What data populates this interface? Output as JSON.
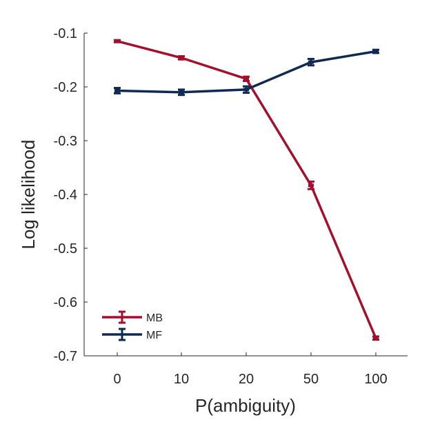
{
  "chart_data": {
    "type": "line",
    "title": "",
    "xlabel": "P(ambiguity)",
    "ylabel": "Log likelihood",
    "categories": [
      "0",
      "10",
      "20",
      "50",
      "100"
    ],
    "ylim": [
      -0.7,
      -0.1
    ],
    "yticks": [
      "-0.1",
      "-0.2",
      "-0.3",
      "-0.4",
      "-0.5",
      "-0.6",
      "-0.7"
    ],
    "ytick_values": [
      -0.1,
      -0.2,
      -0.3,
      -0.4,
      -0.5,
      -0.6,
      -0.7
    ],
    "grid": false,
    "legend_position": "bottom-left",
    "series": [
      {
        "name": "MB",
        "color": "#a50f2c",
        "values": [
          -0.115,
          -0.146,
          -0.185,
          -0.383,
          -0.667
        ],
        "errors": [
          0.002,
          0.003,
          0.004,
          0.007,
          0.003
        ]
      },
      {
        "name": "MF",
        "color": "#0f2a52",
        "values": [
          -0.207,
          -0.21,
          -0.205,
          -0.154,
          -0.134
        ],
        "errors": [
          0.005,
          0.005,
          0.006,
          0.006,
          0.003
        ]
      }
    ]
  }
}
